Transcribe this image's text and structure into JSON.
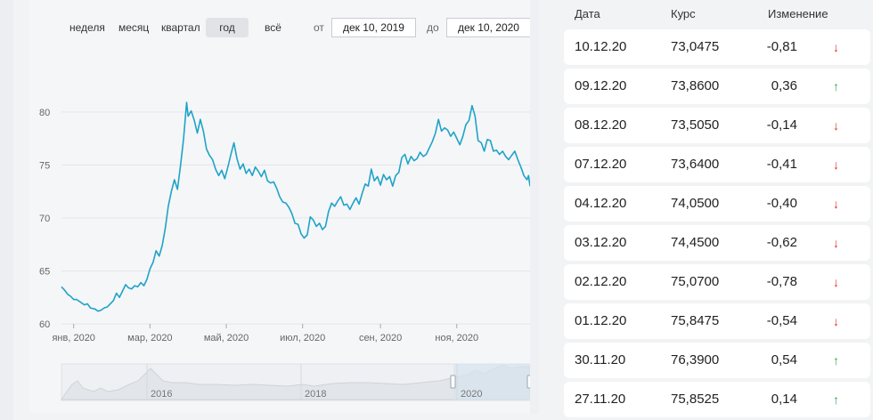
{
  "periods": [
    {
      "label": "неделя",
      "active": false
    },
    {
      "label": "месяц",
      "active": false
    },
    {
      "label": "квартал",
      "active": false
    },
    {
      "label": "год",
      "active": true
    },
    {
      "label": "всё",
      "active": false
    }
  ],
  "range": {
    "from_label": "от",
    "from_value": "дек 10, 2019",
    "to_label": "до",
    "to_value": "дек 10, 2020"
  },
  "chart_data": {
    "type": "line",
    "y_ticks": [
      "60",
      "65",
      "70",
      "75",
      "80"
    ],
    "ylim": [
      60,
      82
    ],
    "x_ticks": [
      "янв, 2020",
      "мар, 2020",
      "май, 2020",
      "июл, 2020",
      "сен, 2020",
      "ноя, 2020"
    ],
    "series_color": "#1fa3c7",
    "series": [
      {
        "values": [
          [
            0,
            63.5
          ],
          [
            2,
            63.2
          ],
          [
            4,
            62.8
          ],
          [
            6,
            62.6
          ],
          [
            8,
            62.3
          ],
          [
            10,
            62.3
          ],
          [
            13,
            62.0
          ],
          [
            15,
            61.8
          ],
          [
            17,
            61.9
          ],
          [
            19,
            61.5
          ],
          [
            22,
            61.4
          ],
          [
            24,
            61.2
          ],
          [
            26,
            61.3
          ],
          [
            28,
            61.5
          ],
          [
            30,
            61.6
          ],
          [
            32,
            61.9
          ],
          [
            34,
            62.2
          ],
          [
            36,
            62.9
          ],
          [
            38,
            62.5
          ],
          [
            40,
            63.1
          ],
          [
            42,
            63.7
          ],
          [
            44,
            63.4
          ],
          [
            46,
            63.3
          ],
          [
            48,
            63.6
          ],
          [
            50,
            63.5
          ],
          [
            52,
            63.9
          ],
          [
            54,
            63.6
          ],
          [
            56,
            64.2
          ],
          [
            58,
            65.2
          ],
          [
            60,
            65.8
          ],
          [
            62,
            66.9
          ],
          [
            64,
            66.4
          ],
          [
            66,
            67.4
          ],
          [
            68,
            69.0
          ],
          [
            70,
            71.1
          ],
          [
            72,
            72.5
          ],
          [
            74,
            73.6
          ],
          [
            76,
            72.7
          ],
          [
            78,
            74.9
          ],
          [
            80,
            77.5
          ],
          [
            82,
            80.9
          ],
          [
            83,
            79.6
          ],
          [
            85,
            80.1
          ],
          [
            87,
            79.2
          ],
          [
            89,
            78.0
          ],
          [
            91,
            79.3
          ],
          [
            93,
            78.2
          ],
          [
            95,
            76.5
          ],
          [
            97,
            75.9
          ],
          [
            99,
            75.5
          ],
          [
            101,
            74.6
          ],
          [
            103,
            74.0
          ],
          [
            105,
            74.5
          ],
          [
            107,
            73.7
          ],
          [
            109,
            74.8
          ],
          [
            111,
            76.0
          ],
          [
            113,
            77.1
          ],
          [
            115,
            75.6
          ],
          [
            117,
            74.6
          ],
          [
            119,
            75.1
          ],
          [
            121,
            74.2
          ],
          [
            123,
            74.6
          ],
          [
            125,
            74.0
          ],
          [
            127,
            74.8
          ],
          [
            129,
            74.4
          ],
          [
            131,
            73.9
          ],
          [
            133,
            74.5
          ],
          [
            135,
            73.5
          ],
          [
            137,
            73.3
          ],
          [
            139,
            73.4
          ],
          [
            141,
            72.8
          ],
          [
            143,
            72.0
          ],
          [
            145,
            71.5
          ],
          [
            147,
            71.4
          ],
          [
            149,
            71.0
          ],
          [
            151,
            70.4
          ],
          [
            153,
            69.5
          ],
          [
            155,
            69.4
          ],
          [
            157,
            68.5
          ],
          [
            159,
            68.1
          ],
          [
            161,
            68.4
          ],
          [
            163,
            70.1
          ],
          [
            165,
            69.8
          ],
          [
            167,
            69.2
          ],
          [
            169,
            69.5
          ],
          [
            171,
            68.9
          ],
          [
            173,
            69.2
          ],
          [
            175,
            70.6
          ],
          [
            177,
            71.4
          ],
          [
            179,
            71.1
          ],
          [
            181,
            71.6
          ],
          [
            183,
            72.0
          ],
          [
            185,
            71.2
          ],
          [
            187,
            71.3
          ],
          [
            189,
            70.8
          ],
          [
            191,
            71.4
          ],
          [
            193,
            71.9
          ],
          [
            195,
            71.3
          ],
          [
            197,
            72.3
          ],
          [
            199,
            73.2
          ],
          [
            201,
            73.0
          ],
          [
            203,
            74.6
          ],
          [
            205,
            73.5
          ],
          [
            207,
            73.9
          ],
          [
            209,
            73.1
          ],
          [
            211,
            74.1
          ],
          [
            213,
            73.6
          ],
          [
            215,
            73.9
          ],
          [
            217,
            73.0
          ],
          [
            219,
            74.0
          ],
          [
            221,
            74.3
          ],
          [
            223,
            75.7
          ],
          [
            225,
            76.0
          ],
          [
            227,
            75.1
          ],
          [
            229,
            75.8
          ],
          [
            231,
            75.4
          ],
          [
            233,
            75.6
          ],
          [
            235,
            76.2
          ],
          [
            237,
            75.8
          ],
          [
            239,
            76.0
          ],
          [
            241,
            76.6
          ],
          [
            243,
            77.2
          ],
          [
            245,
            78.0
          ],
          [
            247,
            79.3
          ],
          [
            249,
            78.2
          ],
          [
            251,
            78.5
          ],
          [
            253,
            78.3
          ],
          [
            255,
            77.7
          ],
          [
            257,
            78.1
          ],
          [
            259,
            77.5
          ],
          [
            261,
            76.9
          ],
          [
            263,
            77.7
          ],
          [
            265,
            78.8
          ],
          [
            267,
            79.2
          ],
          [
            269,
            80.6
          ],
          [
            271,
            79.6
          ],
          [
            273,
            77.3
          ],
          [
            275,
            77.1
          ],
          [
            277,
            76.3
          ],
          [
            279,
            77.4
          ],
          [
            281,
            77.3
          ],
          [
            283,
            76.3
          ],
          [
            285,
            76.4
          ],
          [
            287,
            76.0
          ],
          [
            289,
            76.3
          ],
          [
            291,
            75.8
          ],
          [
            293,
            75.5
          ],
          [
            295,
            75.9
          ],
          [
            297,
            76.3
          ],
          [
            299,
            75.5
          ],
          [
            301,
            74.8
          ],
          [
            303,
            74.0
          ],
          [
            305,
            73.6
          ],
          [
            306,
            74.0
          ],
          [
            307,
            73.0
          ]
        ]
      }
    ]
  },
  "navigator": {
    "x_ticks": [
      "2016",
      "2018",
      "2020"
    ]
  },
  "table": {
    "headers": {
      "date": "Дата",
      "rate": "Курс",
      "change": "Изменение"
    },
    "rows": [
      {
        "date": "10.12.20",
        "rate": "73,0475",
        "change": "-0,81",
        "dir": "down"
      },
      {
        "date": "09.12.20",
        "rate": "73,8600",
        "change": "0,36",
        "dir": "up"
      },
      {
        "date": "08.12.20",
        "rate": "73,5050",
        "change": "-0,14",
        "dir": "down"
      },
      {
        "date": "07.12.20",
        "rate": "73,6400",
        "change": "-0,41",
        "dir": "down"
      },
      {
        "date": "04.12.20",
        "rate": "74,0500",
        "change": "-0,40",
        "dir": "down"
      },
      {
        "date": "03.12.20",
        "rate": "74,4500",
        "change": "-0,62",
        "dir": "down"
      },
      {
        "date": "02.12.20",
        "rate": "75,0700",
        "change": "-0,78",
        "dir": "down"
      },
      {
        "date": "01.12.20",
        "rate": "75,8475",
        "change": "-0,54",
        "dir": "down"
      },
      {
        "date": "30.11.20",
        "rate": "76,3900",
        "change": "0,54",
        "dir": "up"
      },
      {
        "date": "27.11.20",
        "rate": "75,8525",
        "change": "0,14",
        "dir": "up"
      }
    ],
    "colors": {
      "up": "#2fa84f",
      "down": "#e0312b"
    },
    "arrows": {
      "up": "↑",
      "down": "↓"
    }
  }
}
